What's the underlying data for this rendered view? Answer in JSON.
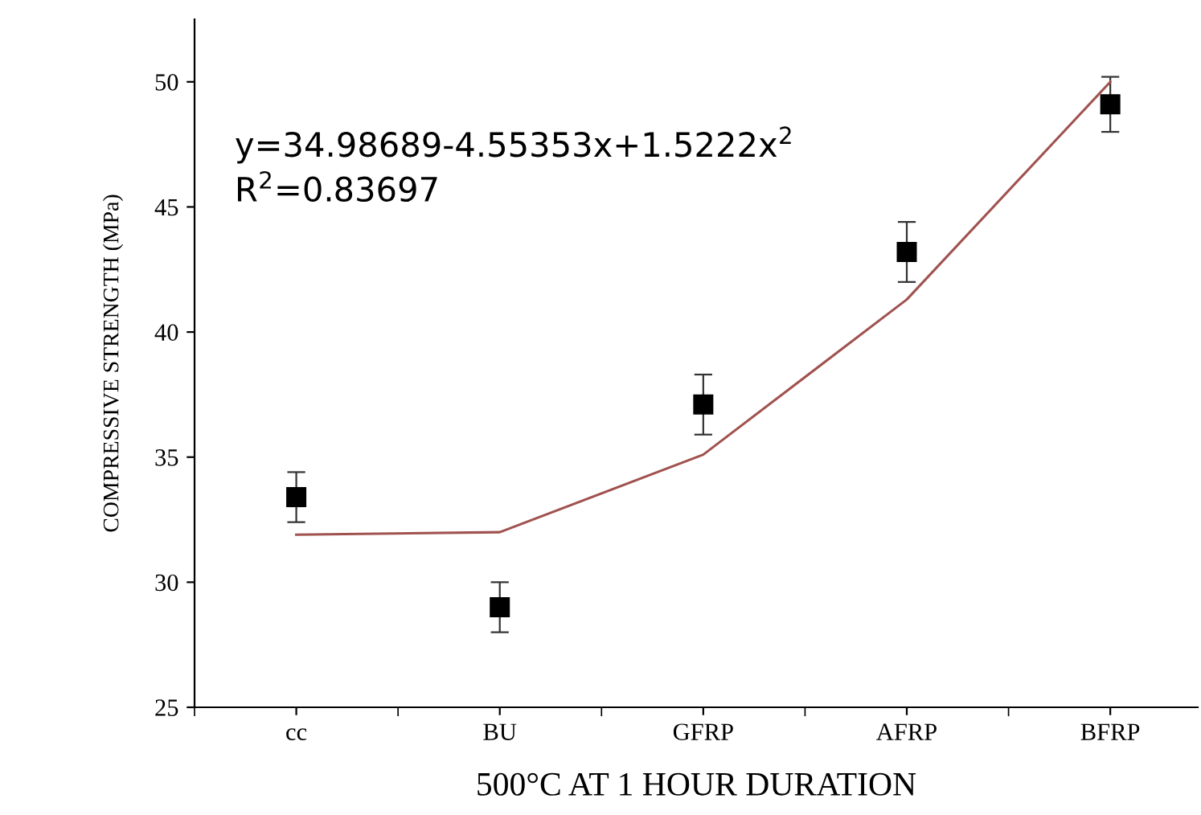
{
  "chart_data": {
    "type": "scatter",
    "xlabel": "500°C AT 1 HOUR DURATION",
    "ylabel": "COMPRESSIVE STRENGTH (MPa)",
    "categories": [
      "cc",
      "BU",
      "GFRP",
      "AFRP",
      "BFRP"
    ],
    "series": [
      {
        "color": "#000000",
        "marker": "square",
        "values": [
          33.4,
          29.0,
          37.1,
          43.2,
          49.1
        ],
        "errors": [
          1.0,
          1.0,
          1.2,
          1.2,
          1.1
        ]
      },
      {
        "type": "line",
        "color": "#a0524f",
        "marker": "none",
        "line_style": "solid",
        "values": [
          31.9,
          32.0,
          35.1,
          41.3,
          50.0
        ]
      }
    ],
    "ylim": [
      25,
      52.5
    ],
    "yticks": [
      25,
      30,
      35,
      40,
      45,
      50
    ],
    "grid": false,
    "legend": false,
    "annotations": [
      "y=34.98689-4.55353x+1.5222x$^{2}$",
      "R$^{2}$=0.83697"
    ]
  }
}
